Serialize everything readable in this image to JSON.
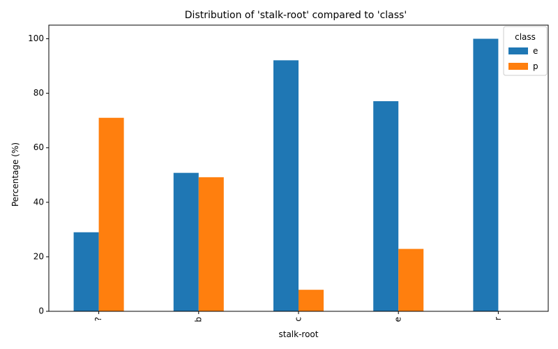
{
  "chart_data": {
    "type": "bar",
    "title": "Distribution of 'stalk-root' compared to 'class'",
    "xlabel": "stalk-root",
    "ylabel": "Percentage (%)",
    "categories": [
      "?",
      "b",
      "c",
      "e",
      "r"
    ],
    "series": [
      {
        "name": "e",
        "values": [
          29.0,
          50.8,
          92.1,
          77.1,
          100.0
        ],
        "color": "#1f77b4"
      },
      {
        "name": "p",
        "values": [
          71.0,
          49.2,
          7.9,
          22.9,
          0.0
        ],
        "color": "#ff7f0e"
      }
    ],
    "ylim": [
      0,
      105
    ],
    "yticks": [
      0,
      20,
      40,
      60,
      80,
      100
    ],
    "legend": {
      "title": "class",
      "placement": "top-right"
    },
    "grid": false
  }
}
